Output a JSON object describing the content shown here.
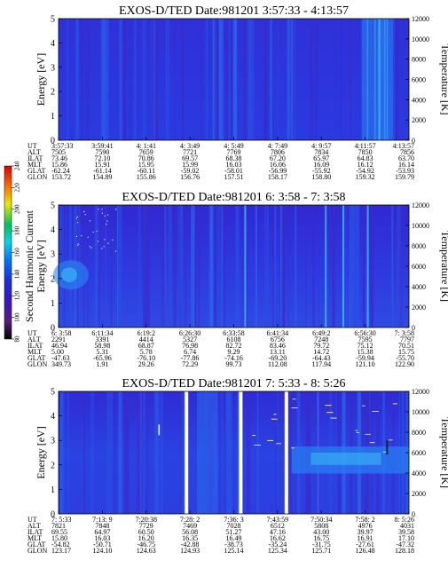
{
  "colorbar": {
    "label": "Second Harmonic Current",
    "ticks": [
      "80",
      "100",
      "120",
      "140",
      "160",
      "180",
      "200",
      "220",
      "240"
    ],
    "colors": [
      "#000000",
      "#5a1e78",
      "#3a14c8",
      "#1a2ee0",
      "#0078ff",
      "#00d8e8",
      "#00c060",
      "#e8e800",
      "#ff7000",
      "#e00000"
    ]
  },
  "chart_data": [
    {
      "type": "heatmap",
      "title": "EXOS-D/TED",
      "date_label": "Date:981201",
      "time_range": "3:57:33 - 4:13:57",
      "ylabel": "Energy [eV]",
      "ylim": [
        0,
        5
      ],
      "y_ticks": [
        "0",
        "1",
        "2",
        "3",
        "4",
        "5"
      ],
      "right_label": "Temperature [K]",
      "right_lim": [
        0,
        12000
      ],
      "right_ticks": [
        "0",
        "2000",
        "4000",
        "6000",
        "8000",
        "10000",
        "12000"
      ],
      "row_labels": [
        "UT",
        "ALT",
        "ILAT",
        "MLT",
        "GLAT",
        "GLON"
      ],
      "columns": [
        [
          "3:57:33",
          "7505",
          "73.46",
          "15.86",
          "-62.24",
          "153.72"
        ],
        [
          "3:59:41",
          "7590",
          "72.10",
          "15.91",
          "-61.14",
          "154.89"
        ],
        [
          "4: 1:41",
          "7659",
          "70.86",
          "15.95",
          "-60.11",
          "155.86"
        ],
        [
          "4: 3:49",
          "7721",
          "69.57",
          "15.99",
          "-59.02",
          "156.76"
        ],
        [
          "4: 5:49",
          "7769",
          "68.38",
          "16.03",
          "-58.01",
          "157.51"
        ],
        [
          "4: 7:49",
          "7806",
          "67.20",
          "16.06",
          "-56.99",
          "158.17"
        ],
        [
          "4: 9:57",
          "7834",
          "65.97",
          "16.09",
          "-55.92",
          "158.80"
        ],
        [
          "4:11:57",
          "7850",
          "64.83",
          "16.12",
          "-54.92",
          "159.32"
        ],
        [
          "4:13:57",
          "7856",
          "63.70",
          "16.14",
          "-53.93",
          "159.79"
        ]
      ]
    },
    {
      "type": "heatmap",
      "title": "EXOS-D/TED",
      "date_label": "Date:981201",
      "time_range": "6: 3:58 - 7: 3:58",
      "ylabel": "Energy [eV]",
      "ylim": [
        0,
        5
      ],
      "y_ticks": [
        "0",
        "1",
        "2",
        "3",
        "4",
        "5"
      ],
      "right_label": "Temperature [K]",
      "right_lim": [
        0,
        12000
      ],
      "right_ticks": [
        "0",
        "2000",
        "4000",
        "6000",
        "8000",
        "10000",
        "12000"
      ],
      "row_labels": [
        "UT",
        "ALT",
        "ILAT",
        "MLT",
        "GLAT",
        "GLON"
      ],
      "columns": [
        [
          "6: 3:58",
          "2291",
          "46.94",
          "5.00",
          "-47.63",
          "349.73"
        ],
        [
          "6:11:34",
          "3391",
          "58.98",
          "5.31",
          "-65.96",
          "1.91"
        ],
        [
          "6:19:2",
          "4414",
          "68.87",
          "5.78",
          "-76.10",
          "29.26"
        ],
        [
          "6:26:30",
          "5327",
          "76.98",
          "6.74",
          "-77.86",
          "72.29"
        ],
        [
          "6:33:58",
          "6108",
          "82.72",
          "9.29",
          "-74.16",
          "99.73"
        ],
        [
          "6:41:34",
          "6756",
          "83.46",
          "13.11",
          "-69.20",
          "112.08"
        ],
        [
          "6:49:2",
          "7248",
          "79.72",
          "14.72",
          "-64.43",
          "117.94"
        ],
        [
          "6:56:30",
          "7595",
          "75.12",
          "15.38",
          "-59.94",
          "121.10"
        ],
        [
          "7: 3:58",
          "7797",
          "70.51",
          "15.75",
          "-55.70",
          "122.90"
        ]
      ]
    },
    {
      "type": "heatmap",
      "title": "EXOS-D/TED",
      "date_label": "Date:981201",
      "time_range": "7: 5:33 - 8: 5:26",
      "ylabel": "Energy [eV]",
      "ylim": [
        0,
        5
      ],
      "y_ticks": [
        "0",
        "1",
        "2",
        "3",
        "4",
        "5"
      ],
      "right_label": "Temperature [K]",
      "right_lim": [
        0,
        12000
      ],
      "right_ticks": [
        "0",
        "2000",
        "4000",
        "6000",
        "8000",
        "10000",
        "12000"
      ],
      "row_labels": [
        "UT",
        "ALT",
        "ILAT",
        "MLT",
        "GLAT",
        "GLON"
      ],
      "columns": [
        [
          "7: 5:33",
          "7821",
          "69.55",
          "15.80",
          "-54.82",
          "123.17"
        ],
        [
          "7:13: 9",
          "7848",
          "64.97",
          "16.03",
          "-50.71",
          "124.10"
        ],
        [
          "7:20:38",
          "7729",
          "60.50",
          "16.20",
          "-46.75",
          "124.63"
        ],
        [
          "7:28: 2",
          "7469",
          "56.08",
          "16.35",
          "-42.88",
          "124.93"
        ],
        [
          "7:36: 3",
          "7028",
          "51.27",
          "16.49",
          "-38.73",
          "125.14"
        ],
        [
          "7:43:59",
          "6512",
          "47.16",
          "16.62",
          "-35.24",
          "125.34"
        ],
        [
          "7:50:34",
          "5808",
          "43.00",
          "16.75",
          "-31.75",
          "125.71"
        ],
        [
          "7:58: 2",
          "4976",
          "39.97",
          "16.91",
          "-27.61",
          "126.48"
        ],
        [
          "8: 5:26",
          "4031",
          "39.58",
          "17.10",
          "-47.32",
          "128.18"
        ]
      ]
    }
  ]
}
